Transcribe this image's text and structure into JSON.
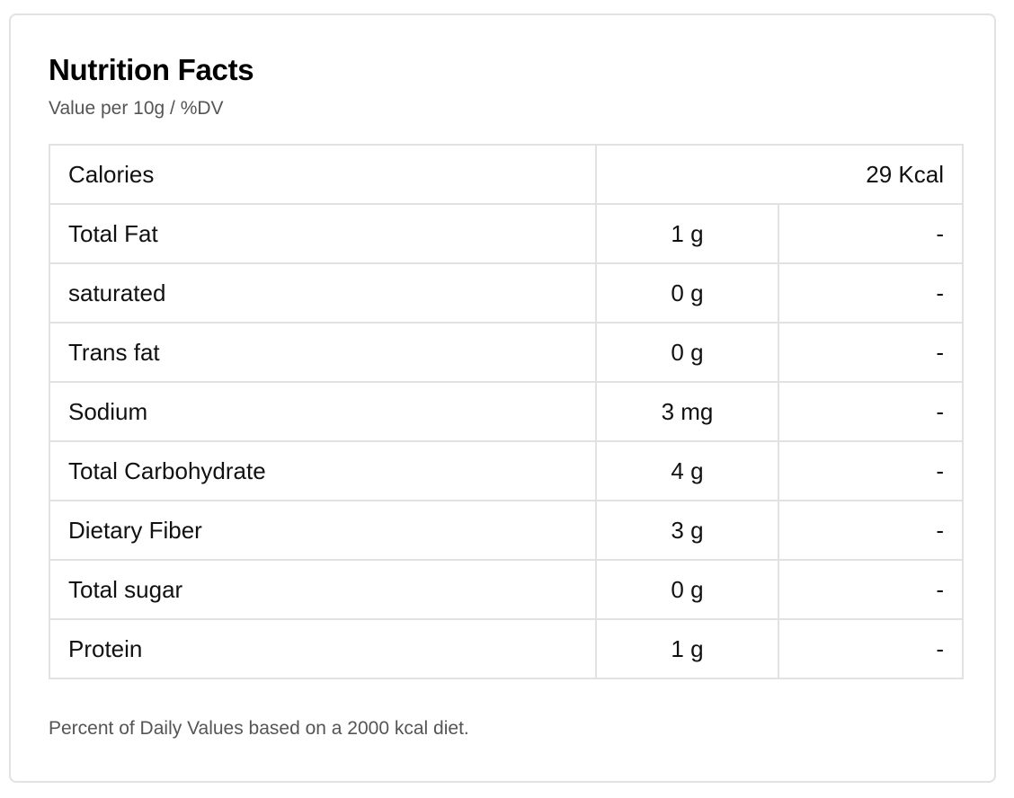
{
  "panel": {
    "title": "Nutrition Facts",
    "subtitle": "Value per 10g / %DV",
    "footnote": "Percent of Daily Values based on a 2000 kcal diet."
  },
  "calories": {
    "label": "Calories",
    "value": "29 Kcal"
  },
  "rows": [
    {
      "name": "Total Fat",
      "value": "1 g",
      "dv": "-"
    },
    {
      "name": "saturated",
      "value": "0 g",
      "dv": "-"
    },
    {
      "name": "Trans fat",
      "value": "0 g",
      "dv": "-"
    },
    {
      "name": "Sodium",
      "value": "3 mg",
      "dv": "-"
    },
    {
      "name": "Total Carbohydrate",
      "value": "4 g",
      "dv": "-"
    },
    {
      "name": "Dietary Fiber",
      "value": "3 g",
      "dv": "-"
    },
    {
      "name": "Total sugar",
      "value": "0 g",
      "dv": "-"
    },
    {
      "name": "Protein",
      "value": "1 g",
      "dv": "-"
    }
  ]
}
